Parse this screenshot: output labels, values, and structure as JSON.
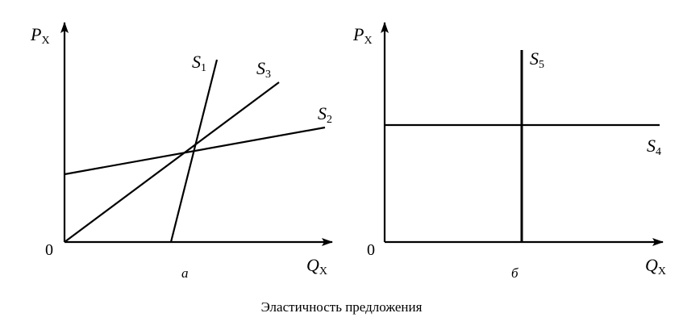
{
  "caption": "Эластичность предложения",
  "panels": [
    {
      "id": "a",
      "panel_label": "а",
      "y_axis": {
        "symbol": "P",
        "subscript": "X"
      },
      "x_axis": {
        "symbol": "Q",
        "subscript": "X"
      },
      "origin_label": "0",
      "curves": [
        {
          "symbol": "S",
          "subscript": "1",
          "description": "steep, starts on Q axis"
        },
        {
          "symbol": "S",
          "subscript": "3",
          "description": "from origin"
        },
        {
          "symbol": "S",
          "subscript": "2",
          "description": "flat, starts on P axis"
        }
      ]
    },
    {
      "id": "b",
      "panel_label": "б",
      "y_axis": {
        "symbol": "P",
        "subscript": "X"
      },
      "x_axis": {
        "symbol": "Q",
        "subscript": "X"
      },
      "origin_label": "0",
      "curves": [
        {
          "symbol": "S",
          "subscript": "5",
          "description": "vertical"
        },
        {
          "symbol": "S",
          "subscript": "4",
          "description": "horizontal"
        }
      ]
    }
  ]
}
